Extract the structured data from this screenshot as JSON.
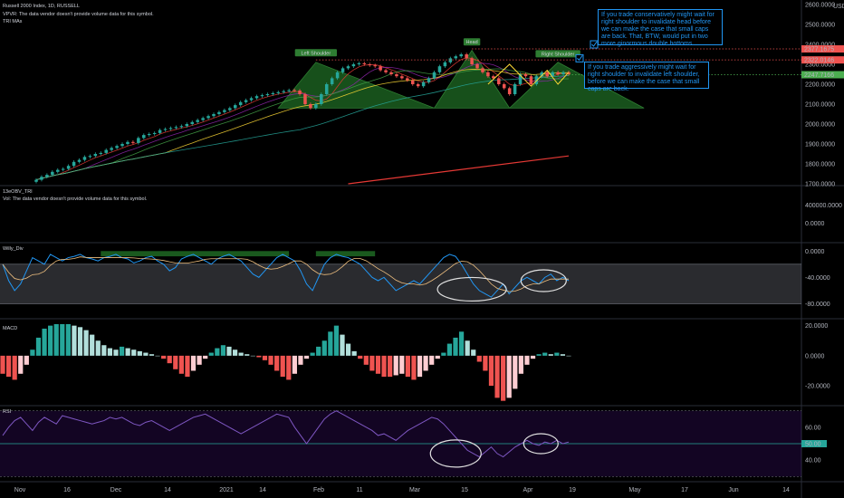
{
  "chart_data": [
    {
      "panel": "price",
      "type": "candlestick",
      "title": "Russell 2000 Index, 1D, RUSSELL",
      "subtitle_lines": [
        "VPVR: The data vendor doesn't provide volume data for this symbol.",
        "TRI MAs"
      ],
      "y_ticks": [
        "2600.0000",
        "2500.0000",
        "2400.0000",
        "2300.0000",
        "2200.0000",
        "2100.0000",
        "2000.0000",
        "1900.0000",
        "1800.0000",
        "1700.0000"
      ],
      "price_labels": [
        "2377.1675",
        "2322.0146",
        "2247.7166"
      ],
      "currency": "USD",
      "annotations": [
        "Left Shoulder",
        "Head",
        "Right Shoulder"
      ],
      "closes": [
        1720,
        1735,
        1745,
        1760,
        1770,
        1775,
        1790,
        1810,
        1820,
        1835,
        1840,
        1850,
        1855,
        1870,
        1880,
        1890,
        1900,
        1910,
        1905,
        1930,
        1945,
        1950,
        1955,
        1970,
        1975,
        1980,
        1985,
        1990,
        2000,
        2010,
        2020,
        2030,
        2040,
        2050,
        2060,
        2070,
        2080,
        2095,
        2110,
        2120,
        2130,
        2140,
        2145,
        2150,
        2155,
        2160,
        2165,
        2170,
        2168,
        2150,
        2100,
        2080,
        2100,
        2150,
        2200,
        2230,
        2260,
        2280,
        2290,
        2300,
        2305,
        2300,
        2295,
        2290,
        2270,
        2260,
        2250,
        2240,
        2230,
        2220,
        2200,
        2190,
        2210,
        2230,
        2260,
        2290,
        2310,
        2330,
        2340,
        2350,
        2330,
        2300,
        2280,
        2260,
        2240,
        2230,
        2200,
        2180,
        2150,
        2200,
        2250,
        2240,
        2200,
        2240,
        2260,
        2240,
        2260,
        2250,
        2260,
        2250
      ],
      "notes": [
        "If you trade conservatively might wait for right shoulder to invalidate head before we can make the case that small caps are back. That, BTW, would put in two more ginormous double bottoms.",
        "If you trade aggressively might wait for right shoulder to invalidate left shoulder, before we can make the case that small caps are back."
      ]
    },
    {
      "panel": "obv",
      "title": "13eOBV_TRI",
      "subtitle": "Vol: The data vendor doesn't provide volume data for this symbol.",
      "y_ticks": [
        "400000.0000",
        "0.0000"
      ]
    },
    {
      "panel": "willy",
      "type": "line",
      "title": "Willy_Div",
      "y_ticks": [
        "0.0000",
        "-40.0000",
        "-80.0000"
      ],
      "values": [
        -20,
        -45,
        -60,
        -50,
        -30,
        -10,
        -15,
        -20,
        -5,
        -10,
        -15,
        -10,
        -8,
        -5,
        -10,
        -12,
        -15,
        -10,
        -8,
        -5,
        -10,
        -12,
        -18,
        -15,
        -10,
        -8,
        -15,
        -20,
        -30,
        -25,
        -12,
        -8,
        -5,
        -10,
        -15,
        -20,
        -12,
        -8,
        -5,
        -10,
        -15,
        -25,
        -35,
        -40,
        -30,
        -20,
        -10,
        -5,
        -10,
        -15,
        -30,
        -50,
        -60,
        -40,
        -20,
        -10,
        -5,
        -8,
        -10,
        -15,
        -20,
        -30,
        -40,
        -45,
        -40,
        -50,
        -60,
        -55,
        -50,
        -45,
        -50,
        -40,
        -30,
        -20,
        -10,
        -5,
        -8,
        -20,
        -35,
        -50,
        -60,
        -65,
        -70,
        -60,
        -50,
        -65,
        -55,
        -45,
        -40,
        -45,
        -50,
        -40,
        -35,
        -45,
        -40,
        -45
      ]
    },
    {
      "panel": "macd",
      "type": "bar",
      "title": "MACD",
      "y_ticks": [
        "20.0000",
        "0.0000",
        "-20.0000"
      ],
      "values": [
        -12,
        -14,
        -16,
        -12,
        -6,
        4,
        12,
        18,
        20,
        21,
        21,
        21,
        20,
        19,
        17,
        14,
        10,
        7,
        5,
        4,
        6,
        5,
        4,
        3,
        2,
        1,
        0,
        -2,
        -5,
        -9,
        -12,
        -14,
        -10,
        -6,
        -2,
        2,
        5,
        7,
        6,
        4,
        2,
        1,
        0,
        -1,
        -3,
        -6,
        -10,
        -14,
        -16,
        -12,
        -6,
        -2,
        2,
        6,
        10,
        16,
        20,
        14,
        8,
        3,
        -2,
        -6,
        -10,
        -12,
        -14,
        -14,
        -13,
        -12,
        -14,
        -16,
        -14,
        -10,
        -6,
        -2,
        2,
        8,
        12,
        16,
        10,
        4,
        -4,
        -10,
        -20,
        -28,
        -30,
        -28,
        -22,
        -12,
        -6,
        -2,
        1,
        2,
        1,
        2,
        1,
        0
      ]
    },
    {
      "panel": "rsi",
      "type": "line",
      "title": "RSI",
      "y_ticks": [
        "60.00",
        "50.00",
        "40.00"
      ],
      "values": [
        55,
        60,
        64,
        66,
        62,
        58,
        63,
        66,
        64,
        62,
        67,
        66,
        65,
        64,
        63,
        62,
        63,
        64,
        66,
        65,
        66,
        64,
        62,
        61,
        63,
        64,
        62,
        60,
        58,
        60,
        62,
        64,
        66,
        67,
        68,
        66,
        64,
        62,
        60,
        58,
        56,
        58,
        60,
        62,
        64,
        66,
        68,
        67,
        66,
        60,
        55,
        50,
        55,
        60,
        65,
        68,
        70,
        68,
        66,
        64,
        62,
        60,
        58,
        55,
        56,
        54,
        52,
        55,
        58,
        60,
        62,
        64,
        66,
        65,
        62,
        58,
        54,
        50,
        46,
        44,
        42,
        45,
        48,
        44,
        42,
        45,
        48,
        50,
        52,
        50,
        49,
        51,
        50,
        52,
        50,
        51
      ]
    },
    {
      "panel": "time_axis",
      "x_ticks": [
        "Nov",
        "16",
        "Dec",
        "14",
        "2021",
        "14",
        "Feb",
        "11",
        "Mar",
        "15",
        "Apr",
        "19",
        "May",
        "17",
        "Jun",
        "14"
      ]
    }
  ]
}
